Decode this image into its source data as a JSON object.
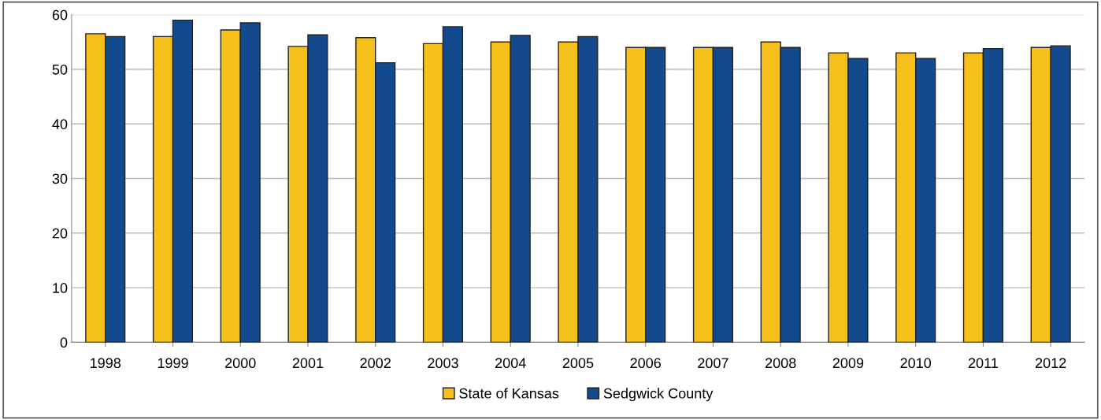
{
  "chart_data": {
    "type": "bar",
    "categories": [
      "1998",
      "1999",
      "2000",
      "2001",
      "2002",
      "2003",
      "2004",
      "2005",
      "2006",
      "2007",
      "2008",
      "2009",
      "2010",
      "2011",
      "2012"
    ],
    "series": [
      {
        "name": "State of Kansas",
        "color": "#f5c01a",
        "values": [
          56.5,
          56,
          57.2,
          54.2,
          55.8,
          54.7,
          55,
          55,
          54,
          54,
          55,
          53,
          53,
          53,
          54
        ]
      },
      {
        "name": "Sedgwick County",
        "color": "#134a8e",
        "values": [
          56,
          59,
          58.5,
          56.3,
          51.2,
          57.8,
          56.2,
          56,
          54,
          54,
          54,
          52,
          52,
          53.8,
          54.3
        ]
      }
    ],
    "ylim": [
      0,
      60
    ],
    "yticks": [
      0,
      10,
      20,
      30,
      40,
      50,
      60
    ],
    "grid": "y",
    "legend": "bottom"
  }
}
